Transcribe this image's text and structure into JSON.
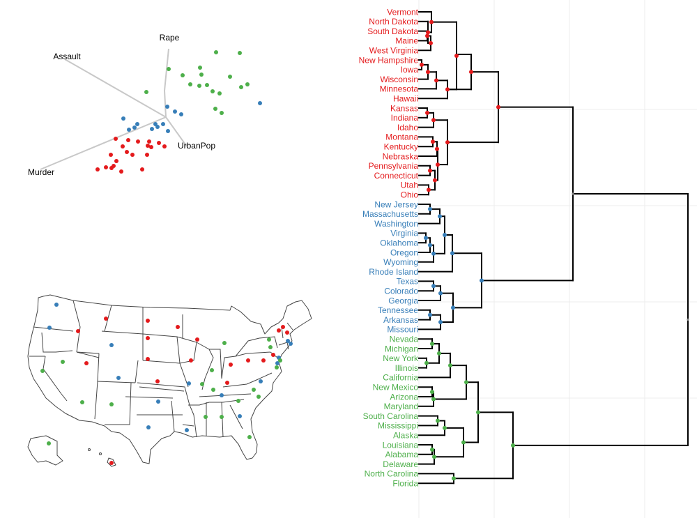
{
  "colors": {
    "red": "#e41a1c",
    "blue": "#377eb8",
    "green": "#4daf4a",
    "line": "#000000",
    "arrow": "#c8c8c8",
    "grid": "#ececec",
    "state_stroke": "#444444"
  },
  "biplot": {
    "arrows": [
      {
        "name": "Rape",
        "label": "Rape"
      },
      {
        "name": "Assault",
        "label": "Assault"
      },
      {
        "name": "Murder",
        "label": "Murder"
      },
      {
        "name": "UrbanPop",
        "label": "UrbanPop"
      }
    ]
  },
  "dendrogram": {
    "states": [
      {
        "name": "Vermont",
        "label": "Vermont",
        "cluster": "red"
      },
      {
        "name": "North Dakota",
        "label": "North Dakota",
        "cluster": "red"
      },
      {
        "name": "South Dakota",
        "label": "South Dakota",
        "cluster": "red"
      },
      {
        "name": "Maine",
        "label": "Maine",
        "cluster": "red"
      },
      {
        "name": "West Virginia",
        "label": "West Virginia",
        "cluster": "red"
      },
      {
        "name": "New Hampshire",
        "label": "New Hampshire",
        "cluster": "red"
      },
      {
        "name": "Iowa",
        "label": "Iowa",
        "cluster": "red"
      },
      {
        "name": "Wisconsin",
        "label": "Wisconsin",
        "cluster": "red"
      },
      {
        "name": "Minnesota",
        "label": "Minnesota",
        "cluster": "red"
      },
      {
        "name": "Hawaii",
        "label": "Hawaii",
        "cluster": "red"
      },
      {
        "name": "Kansas",
        "label": "Kansas",
        "cluster": "red"
      },
      {
        "name": "Indiana",
        "label": "Indiana",
        "cluster": "red"
      },
      {
        "name": "Idaho",
        "label": "Idaho",
        "cluster": "red"
      },
      {
        "name": "Montana",
        "label": "Montana",
        "cluster": "red"
      },
      {
        "name": "Kentucky",
        "label": "Kentucky",
        "cluster": "red"
      },
      {
        "name": "Nebraska",
        "label": "Nebraska",
        "cluster": "red"
      },
      {
        "name": "Pennsylvania",
        "label": "Pennsylvania",
        "cluster": "red"
      },
      {
        "name": "Connecticut",
        "label": "Connecticut",
        "cluster": "red"
      },
      {
        "name": "Utah",
        "label": "Utah",
        "cluster": "red"
      },
      {
        "name": "Ohio",
        "label": "Ohio",
        "cluster": "red"
      },
      {
        "name": "New Jersey",
        "label": "New Jersey",
        "cluster": "blue"
      },
      {
        "name": "Massachusetts",
        "label": "Massachusetts",
        "cluster": "blue"
      },
      {
        "name": "Washington",
        "label": "Washington",
        "cluster": "blue"
      },
      {
        "name": "Virginia",
        "label": "Virginia",
        "cluster": "blue"
      },
      {
        "name": "Oklahoma",
        "label": "Oklahoma",
        "cluster": "blue"
      },
      {
        "name": "Oregon",
        "label": "Oregon",
        "cluster": "blue"
      },
      {
        "name": "Wyoming",
        "label": "Wyoming",
        "cluster": "blue"
      },
      {
        "name": "Rhode Island",
        "label": "Rhode Island",
        "cluster": "blue"
      },
      {
        "name": "Texas",
        "label": "Texas",
        "cluster": "blue"
      },
      {
        "name": "Colorado",
        "label": "Colorado",
        "cluster": "blue"
      },
      {
        "name": "Georgia",
        "label": "Georgia",
        "cluster": "blue"
      },
      {
        "name": "Tennessee",
        "label": "Tennessee",
        "cluster": "blue"
      },
      {
        "name": "Arkansas",
        "label": "Arkansas",
        "cluster": "blue"
      },
      {
        "name": "Missouri",
        "label": "Missouri",
        "cluster": "blue"
      },
      {
        "name": "Nevada",
        "label": "Nevada",
        "cluster": "green"
      },
      {
        "name": "Michigan",
        "label": "Michigan",
        "cluster": "green"
      },
      {
        "name": "New York",
        "label": "New York",
        "cluster": "green"
      },
      {
        "name": "Illinois",
        "label": "Illinois",
        "cluster": "green"
      },
      {
        "name": "California",
        "label": "California",
        "cluster": "green"
      },
      {
        "name": "New Mexico",
        "label": "New Mexico",
        "cluster": "green"
      },
      {
        "name": "Arizona",
        "label": "Arizona",
        "cluster": "green"
      },
      {
        "name": "Maryland",
        "label": "Maryland",
        "cluster": "green"
      },
      {
        "name": "South Carolina",
        "label": "South Carolina",
        "cluster": "green"
      },
      {
        "name": "Mississippi",
        "label": "Mississippi",
        "cluster": "green"
      },
      {
        "name": "Alaska",
        "label": "Alaska",
        "cluster": "green"
      },
      {
        "name": "Louisiana",
        "label": "Louisiana",
        "cluster": "green"
      },
      {
        "name": "Alabama",
        "label": "Alabama",
        "cluster": "green"
      },
      {
        "name": "Delaware",
        "label": "Delaware",
        "cluster": "green"
      },
      {
        "name": "North Carolina",
        "label": "North Carolina",
        "cluster": "green"
      },
      {
        "name": "Florida",
        "label": "Florida",
        "cluster": "green"
      }
    ]
  }
}
